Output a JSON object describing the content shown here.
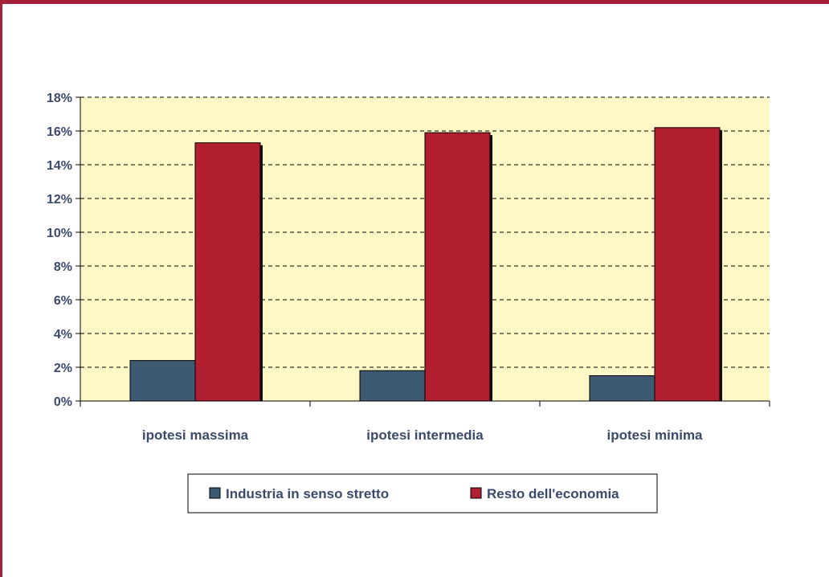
{
  "chart_data": {
    "type": "bar",
    "categories": [
      "ipotesi massima",
      "ipotesi intermedia",
      "ipotesi minima"
    ],
    "series": [
      {
        "name": "Industria in senso stretto",
        "values": [
          0.024,
          0.018,
          0.015
        ]
      },
      {
        "name": "Resto dell'economia",
        "values": [
          0.153,
          0.159,
          0.162
        ]
      }
    ],
    "ylim": [
      0,
      0.18
    ],
    "yticks": [
      0,
      0.02,
      0.04,
      0.06,
      0.08,
      0.1,
      0.12,
      0.14,
      0.16,
      0.18
    ],
    "ytick_labels": [
      "0%",
      "2%",
      "4%",
      "6%",
      "8%",
      "10%",
      "12%",
      "14%",
      "16%",
      "18%"
    ],
    "title": "",
    "xlabel": "",
    "ylabel": "",
    "grid": true,
    "legend_position": "bottom",
    "colors": {
      "plot_background": "#fdf8c6",
      "series": [
        "#3d5a73",
        "#b01e2f"
      ],
      "shadow": "#111111",
      "frame": "#a3213a",
      "text": "#3b4a6b"
    }
  }
}
